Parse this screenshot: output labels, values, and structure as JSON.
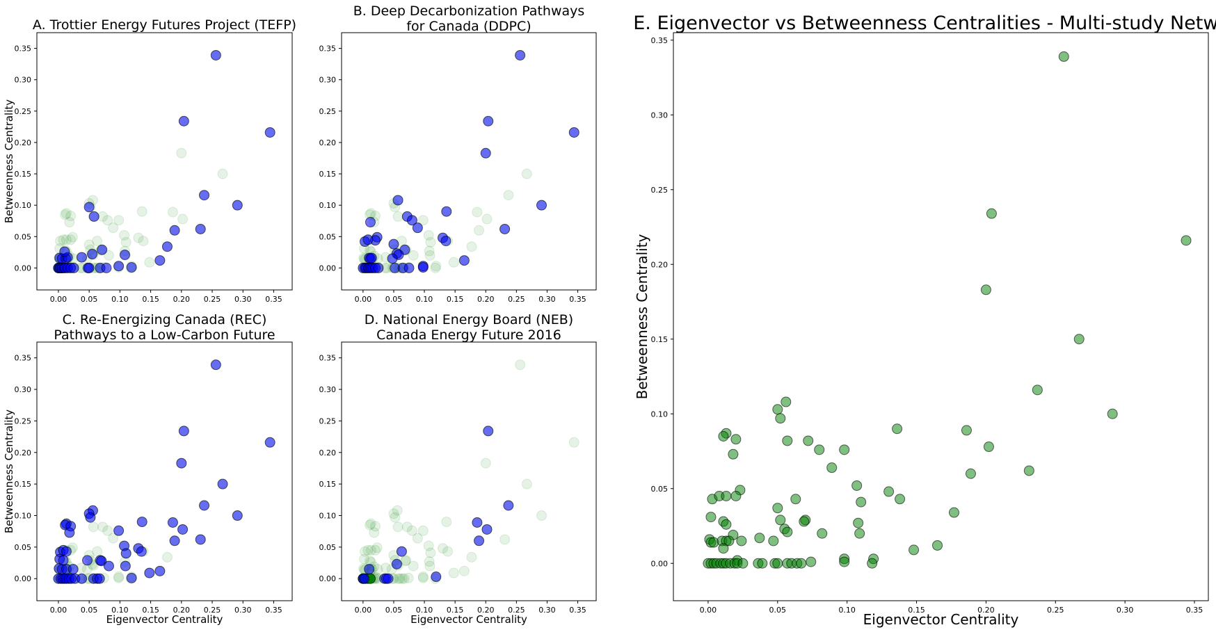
{
  "colors": {
    "highlight": "#0000ff",
    "background_points": "#008000",
    "edge": "#000000"
  },
  "chart_data": [
    {
      "id": "A",
      "type": "scatter",
      "title": "A. Trottier Energy Futures Project (TEFP)",
      "xlabel": "",
      "ylabel": "Betweenness Centrality",
      "xlim": [
        -0.035,
        0.38
      ],
      "ylim": [
        -0.035,
        0.375
      ],
      "xticks": [
        "0.00",
        "0.05",
        "0.10",
        "0.15",
        "0.20",
        "0.25",
        "0.30",
        "0.35"
      ],
      "yticks": [
        "0.00",
        "0.05",
        "0.10",
        "0.15",
        "0.20",
        "0.25",
        "0.30",
        "0.35"
      ],
      "highlight_points": [
        [
          0.256,
          0.339
        ],
        [
          0.204,
          0.234
        ],
        [
          0.344,
          0.216
        ],
        [
          0.237,
          0.116
        ],
        [
          0.291,
          0.1
        ],
        [
          0.05,
          0.097
        ],
        [
          0.058,
          0.082
        ],
        [
          0.231,
          0.062
        ],
        [
          0.189,
          0.06
        ],
        [
          0.177,
          0.034
        ],
        [
          0.071,
          0.029
        ],
        [
          0.055,
          0.022
        ],
        [
          0.108,
          0.021
        ],
        [
          0.038,
          0.017
        ],
        [
          0.002,
          0.016
        ],
        [
          0.006,
          0.015
        ],
        [
          0.012,
          0.015
        ],
        [
          0.015,
          0.017
        ],
        [
          0.01,
          0.026
        ],
        [
          0.165,
          0.012
        ],
        [
          0.098,
          0.003
        ],
        [
          0.119,
          0.001
        ],
        [
          0.0,
          0.0
        ],
        [
          0.003,
          0.0
        ],
        [
          0.006,
          0.0
        ],
        [
          0.009,
          0.0
        ],
        [
          0.011,
          0.0
        ],
        [
          0.015,
          0.0
        ],
        [
          0.02,
          0.0
        ],
        [
          0.025,
          0.0
        ],
        [
          0.048,
          0.0
        ],
        [
          0.05,
          0.0
        ],
        [
          0.068,
          0.0
        ],
        [
          0.078,
          0.0
        ]
      ],
      "dark_green_points": [
        [
          0.0,
          0.0
        ],
        [
          0.002,
          0.0
        ],
        [
          0.004,
          0.0
        ],
        [
          0.006,
          0.0
        ]
      ]
    },
    {
      "id": "B",
      "type": "scatter",
      "title": [
        "B. Deep Decarbonization Pathways",
        "for Canada (DDPC)"
      ],
      "xlabel": "",
      "ylabel": "",
      "xlim": [
        -0.035,
        0.38
      ],
      "ylim": [
        -0.035,
        0.375
      ],
      "xticks": [
        "0.00",
        "0.05",
        "0.10",
        "0.15",
        "0.20",
        "0.25",
        "0.30",
        "0.35"
      ],
      "yticks": [
        "0.00",
        "0.05",
        "0.10",
        "0.15",
        "0.20",
        "0.25",
        "0.30",
        "0.35"
      ],
      "highlight_points": [
        [
          0.256,
          0.339
        ],
        [
          0.204,
          0.234
        ],
        [
          0.2,
          0.183
        ],
        [
          0.344,
          0.216
        ],
        [
          0.291,
          0.1
        ],
        [
          0.231,
          0.062
        ],
        [
          0.136,
          0.09
        ],
        [
          0.057,
          0.108
        ],
        [
          0.072,
          0.082
        ],
        [
          0.08,
          0.076
        ],
        [
          0.089,
          0.064
        ],
        [
          0.012,
          0.073
        ],
        [
          0.13,
          0.048
        ],
        [
          0.135,
          0.043
        ],
        [
          0.023,
          0.049
        ],
        [
          0.02,
          0.044
        ],
        [
          0.003,
          0.042
        ],
        [
          0.008,
          0.045
        ],
        [
          0.05,
          0.038
        ],
        [
          0.068,
          0.029
        ],
        [
          0.055,
          0.023
        ],
        [
          0.058,
          0.021
        ],
        [
          0.048,
          0.015
        ],
        [
          0.165,
          0.012
        ],
        [
          0.01,
          0.016
        ],
        [
          0.012,
          0.015
        ],
        [
          0.014,
          0.016
        ],
        [
          0.098,
          0.003
        ],
        [
          0.098,
          0.001
        ],
        [
          0.0,
          0.0
        ],
        [
          0.003,
          0.0
        ],
        [
          0.005,
          0.0
        ],
        [
          0.008,
          0.0
        ],
        [
          0.01,
          0.0
        ],
        [
          0.013,
          0.0
        ],
        [
          0.016,
          0.0
        ],
        [
          0.02,
          0.0
        ],
        [
          0.025,
          0.0
        ],
        [
          0.052,
          0.0
        ],
        [
          0.065,
          0.0
        ],
        [
          0.075,
          0.0
        ]
      ],
      "dark_green_points": []
    },
    {
      "id": "C",
      "type": "scatter",
      "title": [
        "C. Re-Energizing Canada (REC)",
        "Pathways to a Low-Carbon Future"
      ],
      "xlabel": "Eigenvector Centrality",
      "ylabel": "Betweenness Centrality",
      "xlim": [
        -0.035,
        0.38
      ],
      "ylim": [
        -0.035,
        0.375
      ],
      "xticks": [
        "0.00",
        "0.05",
        "0.10",
        "0.15",
        "0.20",
        "0.25",
        "0.30",
        "0.35"
      ],
      "yticks": [
        "0.00",
        "0.05",
        "0.10",
        "0.15",
        "0.20",
        "0.25",
        "0.30",
        "0.35"
      ],
      "highlight_points": [
        [
          0.256,
          0.339
        ],
        [
          0.204,
          0.234
        ],
        [
          0.2,
          0.183
        ],
        [
          0.344,
          0.216
        ],
        [
          0.267,
          0.15
        ],
        [
          0.237,
          0.116
        ],
        [
          0.291,
          0.1
        ],
        [
          0.202,
          0.078
        ],
        [
          0.186,
          0.089
        ],
        [
          0.189,
          0.06
        ],
        [
          0.231,
          0.062
        ],
        [
          0.136,
          0.09
        ],
        [
          0.056,
          0.108
        ],
        [
          0.05,
          0.103
        ],
        [
          0.052,
          0.097
        ],
        [
          0.013,
          0.087
        ],
        [
          0.011,
          0.085
        ],
        [
          0.02,
          0.083
        ],
        [
          0.018,
          0.073
        ],
        [
          0.098,
          0.076
        ],
        [
          0.107,
          0.052
        ],
        [
          0.13,
          0.048
        ],
        [
          0.135,
          0.043
        ],
        [
          0.11,
          0.04
        ],
        [
          0.003,
          0.042
        ],
        [
          0.008,
          0.045
        ],
        [
          0.013,
          0.043
        ],
        [
          0.002,
          0.031
        ],
        [
          0.008,
          0.029
        ],
        [
          0.047,
          0.029
        ],
        [
          0.068,
          0.029
        ],
        [
          0.07,
          0.028
        ],
        [
          0.082,
          0.02
        ],
        [
          0.109,
          0.02
        ],
        [
          0.001,
          0.016
        ],
        [
          0.006,
          0.015
        ],
        [
          0.013,
          0.015
        ],
        [
          0.024,
          0.015
        ],
        [
          0.148,
          0.009
        ],
        [
          0.165,
          0.012
        ],
        [
          0.119,
          0.001
        ],
        [
          0.0,
          0.0
        ],
        [
          0.004,
          0.0
        ],
        [
          0.007,
          0.0
        ],
        [
          0.01,
          0.0
        ],
        [
          0.013,
          0.0
        ],
        [
          0.017,
          0.0
        ],
        [
          0.021,
          0.0
        ],
        [
          0.027,
          0.0
        ],
        [
          0.038,
          0.0
        ],
        [
          0.057,
          0.0
        ],
        [
          0.063,
          0.0
        ],
        [
          0.067,
          0.0
        ]
      ],
      "dark_green_points": []
    },
    {
      "id": "D",
      "type": "scatter",
      "title": [
        "D. National Energy Board (NEB)",
        "Canada Energy Future 2016"
      ],
      "xlabel": "Eigenvector Centrality",
      "ylabel": "",
      "xlim": [
        -0.035,
        0.38
      ],
      "ylim": [
        -0.035,
        0.375
      ],
      "xticks": [
        "0.00",
        "0.05",
        "0.10",
        "0.15",
        "0.20",
        "0.25",
        "0.30",
        "0.35"
      ],
      "yticks": [
        "0.00",
        "0.05",
        "0.10",
        "0.15",
        "0.20",
        "0.25",
        "0.30",
        "0.35"
      ],
      "highlight_points": [
        [
          0.204,
          0.234
        ],
        [
          0.237,
          0.116
        ],
        [
          0.186,
          0.089
        ],
        [
          0.202,
          0.078
        ],
        [
          0.189,
          0.06
        ],
        [
          0.063,
          0.043
        ],
        [
          0.055,
          0.023
        ],
        [
          0.119,
          0.003
        ],
        [
          0.01,
          0.015
        ],
        [
          0.0,
          0.0
        ],
        [
          0.002,
          0.0
        ],
        [
          0.035,
          0.0
        ],
        [
          0.038,
          0.0
        ],
        [
          0.041,
          0.0
        ]
      ],
      "dark_green_points": [
        [
          0.0,
          0.0
        ],
        [
          0.004,
          0.0
        ],
        [
          0.008,
          0.0
        ],
        [
          0.012,
          0.0
        ]
      ]
    },
    {
      "id": "E",
      "type": "scatter",
      "title": "E. Eigenvector vs Betweenness Centralities - Multi-study Network",
      "xlabel": "Eigenvector Centrality",
      "ylabel": "Betweenness Centrality",
      "xlim": [
        -0.025,
        0.36
      ],
      "ylim": [
        -0.025,
        0.355
      ],
      "xticks": [
        "0.00",
        "0.05",
        "0.10",
        "0.15",
        "0.20",
        "0.25",
        "0.30",
        "0.35"
      ],
      "yticks": [
        "0.00",
        "0.05",
        "0.10",
        "0.15",
        "0.20",
        "0.25",
        "0.30",
        "0.35"
      ],
      "all_points": [
        [
          0.256,
          0.339
        ],
        [
          0.204,
          0.234
        ],
        [
          0.344,
          0.216
        ],
        [
          0.2,
          0.183
        ],
        [
          0.267,
          0.15
        ],
        [
          0.237,
          0.116
        ],
        [
          0.056,
          0.108
        ],
        [
          0.05,
          0.103
        ],
        [
          0.291,
          0.1
        ],
        [
          0.052,
          0.097
        ],
        [
          0.136,
          0.09
        ],
        [
          0.186,
          0.089
        ],
        [
          0.013,
          0.087
        ],
        [
          0.011,
          0.085
        ],
        [
          0.02,
          0.083
        ],
        [
          0.072,
          0.082
        ],
        [
          0.057,
          0.082
        ],
        [
          0.202,
          0.078
        ],
        [
          0.08,
          0.076
        ],
        [
          0.098,
          0.076
        ],
        [
          0.018,
          0.073
        ],
        [
          0.089,
          0.064
        ],
        [
          0.231,
          0.062
        ],
        [
          0.189,
          0.06
        ],
        [
          0.107,
          0.052
        ],
        [
          0.023,
          0.049
        ],
        [
          0.13,
          0.048
        ],
        [
          0.003,
          0.043
        ],
        [
          0.008,
          0.045
        ],
        [
          0.013,
          0.045
        ],
        [
          0.02,
          0.045
        ],
        [
          0.063,
          0.043
        ],
        [
          0.138,
          0.043
        ],
        [
          0.11,
          0.041
        ],
        [
          0.05,
          0.037
        ],
        [
          0.177,
          0.034
        ],
        [
          0.002,
          0.031
        ],
        [
          0.07,
          0.029
        ],
        [
          0.069,
          0.028
        ],
        [
          0.052,
          0.029
        ],
        [
          0.011,
          0.028
        ],
        [
          0.013,
          0.026
        ],
        [
          0.108,
          0.027
        ],
        [
          0.055,
          0.023
        ],
        [
          0.057,
          0.021
        ],
        [
          0.082,
          0.02
        ],
        [
          0.109,
          0.02
        ],
        [
          0.018,
          0.019
        ],
        [
          0.037,
          0.017
        ],
        [
          0.001,
          0.016
        ],
        [
          0.002,
          0.014
        ],
        [
          0.004,
          0.014
        ],
        [
          0.01,
          0.015
        ],
        [
          0.013,
          0.015
        ],
        [
          0.015,
          0.015
        ],
        [
          0.024,
          0.015
        ],
        [
          0.047,
          0.015
        ],
        [
          0.011,
          0.01
        ],
        [
          0.165,
          0.012
        ],
        [
          0.148,
          0.009
        ],
        [
          0.098,
          0.003
        ],
        [
          0.119,
          0.003
        ],
        [
          0.021,
          0.002
        ],
        [
          0.074,
          0.001
        ],
        [
          0.098,
          0.001
        ],
        [
          0.118,
          0.0
        ],
        [
          0.0,
          0.0
        ],
        [
          0.002,
          0.0
        ],
        [
          0.004,
          0.0
        ],
        [
          0.006,
          0.0
        ],
        [
          0.009,
          0.0
        ],
        [
          0.011,
          0.0
        ],
        [
          0.013,
          0.0
        ],
        [
          0.016,
          0.0
        ],
        [
          0.019,
          0.0
        ],
        [
          0.021,
          0.0
        ],
        [
          0.025,
          0.0
        ],
        [
          0.036,
          0.0
        ],
        [
          0.039,
          0.0
        ],
        [
          0.048,
          0.0
        ],
        [
          0.05,
          0.0
        ],
        [
          0.057,
          0.0
        ],
        [
          0.06,
          0.0
        ],
        [
          0.064,
          0.0
        ],
        [
          0.067,
          0.0
        ]
      ]
    }
  ]
}
